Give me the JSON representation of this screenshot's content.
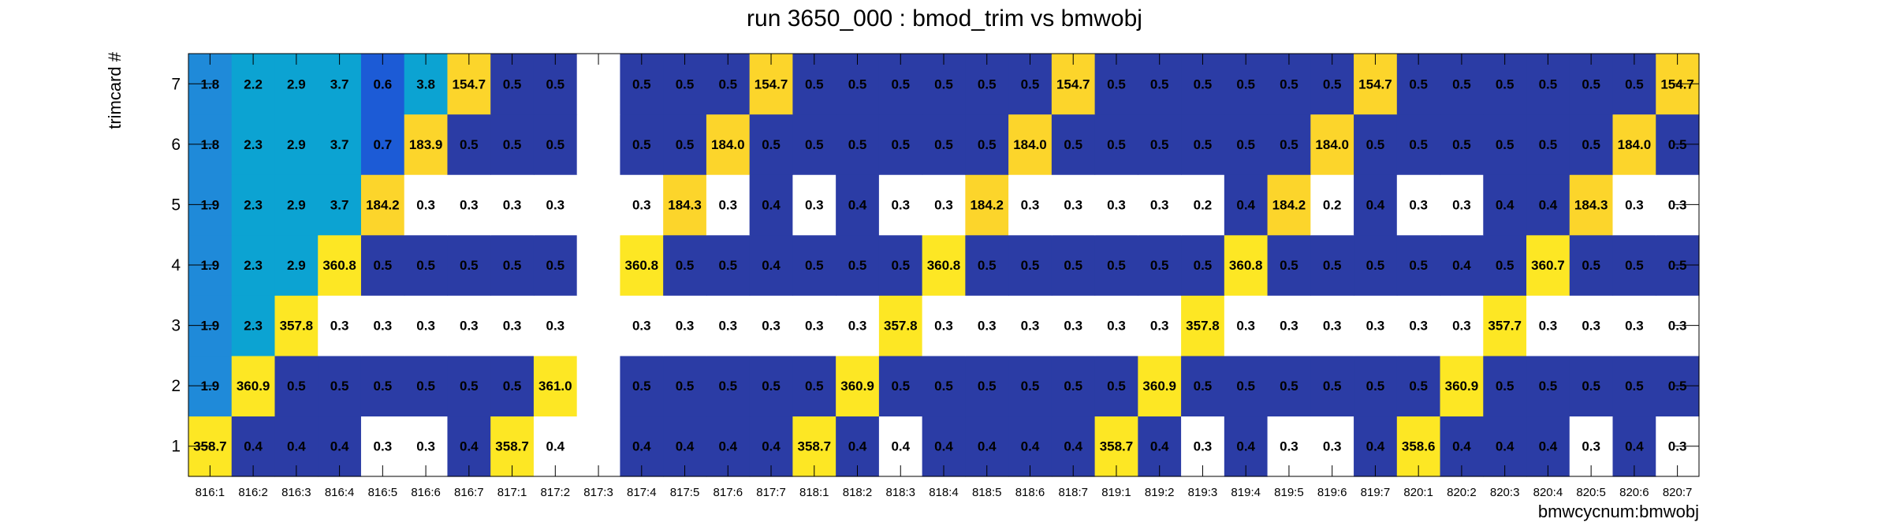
{
  "chart_data": {
    "type": "heatmap",
    "title": "run 3650_000 : bmod_trim vs bmwobj",
    "xlabel": "bmwcycnum:bmwobj",
    "ylabel": "trimcard #",
    "x_categories": [
      "816:1",
      "816:2",
      "816:3",
      "816:4",
      "816:5",
      "816:6",
      "816:7",
      "817:1",
      "817:2",
      "817:3",
      "817:4",
      "817:5",
      "817:6",
      "817:7",
      "818:1",
      "818:2",
      "818:3",
      "818:4",
      "818:5",
      "818:6",
      "818:7",
      "819:1",
      "819:2",
      "819:3",
      "819:4",
      "819:5",
      "819:6",
      "819:7",
      "820:1",
      "820:2",
      "820:3",
      "820:4",
      "820:5",
      "820:6",
      "820:7"
    ],
    "y_categories": [
      "1",
      "2",
      "3",
      "4",
      "5",
      "6",
      "7"
    ],
    "grid": false,
    "legend": "none",
    "colors": {
      "dark_blue": "#2b3ca5",
      "blue": "#1c5bd6",
      "mid_blue": "#1f8ad9",
      "cyan_blue": "#0ca3d2",
      "yellow": "#fde724",
      "gold": "#fcd52b",
      "white": "#ffffff"
    },
    "rows": [
      {
        "trimcard": "1",
        "values": [
          "358.7",
          "0.4",
          "0.4",
          "0.4",
          "0.3",
          "0.3",
          "0.4",
          "358.7",
          "0.4",
          null,
          "0.4",
          "0.4",
          "0.4",
          "0.4",
          "358.7",
          "0.4",
          "0.4",
          "0.4",
          "0.4",
          "0.4",
          "0.4",
          "358.7",
          "0.4",
          "0.3",
          "0.4",
          "0.3",
          "0.3",
          "0.4",
          "358.6",
          "0.4",
          "0.4",
          "0.4",
          "0.3",
          "0.4",
          "0.3"
        ],
        "colors": [
          "yellow",
          "dark_blue",
          "dark_blue",
          "dark_blue",
          "white",
          "white",
          "dark_blue",
          "yellow",
          "white",
          "white",
          "dark_blue",
          "dark_blue",
          "dark_blue",
          "dark_blue",
          "yellow",
          "dark_blue",
          "white",
          "dark_blue",
          "dark_blue",
          "dark_blue",
          "dark_blue",
          "yellow",
          "dark_blue",
          "white",
          "dark_blue",
          "white",
          "white",
          "dark_blue",
          "yellow",
          "dark_blue",
          "dark_blue",
          "dark_blue",
          "white",
          "dark_blue",
          "white"
        ]
      },
      {
        "trimcard": "2",
        "values": [
          "1.9",
          "360.9",
          "0.5",
          "0.5",
          "0.5",
          "0.5",
          "0.5",
          "0.5",
          "361.0",
          null,
          "0.5",
          "0.5",
          "0.5",
          "0.5",
          "0.5",
          "360.9",
          "0.5",
          "0.5",
          "0.5",
          "0.5",
          "0.5",
          "0.5",
          "360.9",
          "0.5",
          "0.5",
          "0.5",
          "0.5",
          "0.5",
          "0.5",
          "360.9",
          "0.5",
          "0.5",
          "0.5",
          "0.5",
          "0.5"
        ],
        "colors": [
          "mid_blue",
          "yellow",
          "dark_blue",
          "dark_blue",
          "dark_blue",
          "dark_blue",
          "dark_blue",
          "dark_blue",
          "yellow",
          "white",
          "dark_blue",
          "dark_blue",
          "dark_blue",
          "dark_blue",
          "dark_blue",
          "yellow",
          "dark_blue",
          "dark_blue",
          "dark_blue",
          "dark_blue",
          "dark_blue",
          "dark_blue",
          "yellow",
          "dark_blue",
          "dark_blue",
          "dark_blue",
          "dark_blue",
          "dark_blue",
          "dark_blue",
          "yellow",
          "dark_blue",
          "dark_blue",
          "dark_blue",
          "dark_blue",
          "dark_blue"
        ]
      },
      {
        "trimcard": "3",
        "values": [
          "1.9",
          "2.3",
          "357.8",
          "0.3",
          "0.3",
          "0.3",
          "0.3",
          "0.3",
          "0.3",
          null,
          "0.3",
          "0.3",
          "0.3",
          "0.3",
          "0.3",
          "0.3",
          "357.8",
          "0.3",
          "0.3",
          "0.3",
          "0.3",
          "0.3",
          "0.3",
          "357.8",
          "0.3",
          "0.3",
          "0.3",
          "0.3",
          "0.3",
          "0.3",
          "357.7",
          "0.3",
          "0.3",
          "0.3",
          "0.3"
        ],
        "colors": [
          "mid_blue",
          "cyan_blue",
          "yellow",
          "white",
          "white",
          "white",
          "white",
          "white",
          "white",
          "white",
          "white",
          "white",
          "white",
          "white",
          "white",
          "white",
          "yellow",
          "white",
          "white",
          "white",
          "white",
          "white",
          "white",
          "yellow",
          "white",
          "white",
          "white",
          "white",
          "white",
          "white",
          "yellow",
          "white",
          "white",
          "white",
          "white"
        ]
      },
      {
        "trimcard": "4",
        "values": [
          "1.9",
          "2.3",
          "2.9",
          "360.8",
          "0.5",
          "0.5",
          "0.5",
          "0.5",
          "0.5",
          null,
          "360.8",
          "0.5",
          "0.5",
          "0.4",
          "0.5",
          "0.5",
          "0.5",
          "360.8",
          "0.5",
          "0.5",
          "0.5",
          "0.5",
          "0.5",
          "0.5",
          "360.8",
          "0.5",
          "0.5",
          "0.5",
          "0.5",
          "0.4",
          "0.5",
          "360.7",
          "0.5",
          "0.5",
          "0.5"
        ],
        "colors": [
          "mid_blue",
          "cyan_blue",
          "cyan_blue",
          "yellow",
          "dark_blue",
          "dark_blue",
          "dark_blue",
          "dark_blue",
          "dark_blue",
          "white",
          "yellow",
          "dark_blue",
          "dark_blue",
          "dark_blue",
          "dark_blue",
          "dark_blue",
          "dark_blue",
          "yellow",
          "dark_blue",
          "dark_blue",
          "dark_blue",
          "dark_blue",
          "dark_blue",
          "dark_blue",
          "yellow",
          "dark_blue",
          "dark_blue",
          "dark_blue",
          "dark_blue",
          "dark_blue",
          "dark_blue",
          "yellow",
          "dark_blue",
          "dark_blue",
          "dark_blue"
        ]
      },
      {
        "trimcard": "5",
        "values": [
          "1.9",
          "2.3",
          "2.9",
          "3.7",
          "184.2",
          "0.3",
          "0.3",
          "0.3",
          "0.3",
          null,
          "0.3",
          "184.3",
          "0.3",
          "0.4",
          "0.3",
          "0.4",
          "0.3",
          "0.3",
          "184.2",
          "0.3",
          "0.3",
          "0.3",
          "0.3",
          "0.2",
          "0.4",
          "184.2",
          "0.2",
          "0.4",
          "0.3",
          "0.3",
          "0.4",
          "0.4",
          "184.3",
          "0.3",
          "0.3"
        ],
        "colors": [
          "mid_blue",
          "cyan_blue",
          "cyan_blue",
          "cyan_blue",
          "gold",
          "white",
          "white",
          "white",
          "white",
          "white",
          "white",
          "gold",
          "white",
          "dark_blue",
          "white",
          "dark_blue",
          "white",
          "white",
          "gold",
          "white",
          "white",
          "white",
          "white",
          "white",
          "dark_blue",
          "gold",
          "white",
          "dark_blue",
          "white",
          "white",
          "dark_blue",
          "dark_blue",
          "gold",
          "white",
          "white"
        ]
      },
      {
        "trimcard": "6",
        "values": [
          "1.8",
          "2.3",
          "2.9",
          "3.7",
          "0.7",
          "183.9",
          "0.5",
          "0.5",
          "0.5",
          null,
          "0.5",
          "0.5",
          "184.0",
          "0.5",
          "0.5",
          "0.5",
          "0.5",
          "0.5",
          "0.5",
          "184.0",
          "0.5",
          "0.5",
          "0.5",
          "0.5",
          "0.5",
          "0.5",
          "184.0",
          "0.5",
          "0.5",
          "0.5",
          "0.5",
          "0.5",
          "0.5",
          "184.0",
          "0.5"
        ],
        "colors": [
          "mid_blue",
          "cyan_blue",
          "cyan_blue",
          "cyan_blue",
          "blue",
          "gold",
          "dark_blue",
          "dark_blue",
          "dark_blue",
          "white",
          "dark_blue",
          "dark_blue",
          "gold",
          "dark_blue",
          "dark_blue",
          "dark_blue",
          "dark_blue",
          "dark_blue",
          "dark_blue",
          "gold",
          "dark_blue",
          "dark_blue",
          "dark_blue",
          "dark_blue",
          "dark_blue",
          "dark_blue",
          "gold",
          "dark_blue",
          "dark_blue",
          "dark_blue",
          "dark_blue",
          "dark_blue",
          "dark_blue",
          "gold",
          "dark_blue"
        ]
      },
      {
        "trimcard": "7",
        "values": [
          "1.8",
          "2.2",
          "2.9",
          "3.7",
          "0.6",
          "3.8",
          "154.7",
          "0.5",
          "0.5",
          null,
          "0.5",
          "0.5",
          "0.5",
          "154.7",
          "0.5",
          "0.5",
          "0.5",
          "0.5",
          "0.5",
          "0.5",
          "154.7",
          "0.5",
          "0.5",
          "0.5",
          "0.5",
          "0.5",
          "0.5",
          "154.7",
          "0.5",
          "0.5",
          "0.5",
          "0.5",
          "0.5",
          "0.5",
          "154.7"
        ],
        "colors": [
          "mid_blue",
          "cyan_blue",
          "cyan_blue",
          "cyan_blue",
          "blue",
          "cyan_blue",
          "gold",
          "dark_blue",
          "dark_blue",
          "white",
          "dark_blue",
          "dark_blue",
          "dark_blue",
          "gold",
          "dark_blue",
          "dark_blue",
          "dark_blue",
          "dark_blue",
          "dark_blue",
          "dark_blue",
          "gold",
          "dark_blue",
          "dark_blue",
          "dark_blue",
          "dark_blue",
          "dark_blue",
          "dark_blue",
          "gold",
          "dark_blue",
          "dark_blue",
          "dark_blue",
          "dark_blue",
          "dark_blue",
          "dark_blue",
          "gold"
        ]
      }
    ]
  }
}
